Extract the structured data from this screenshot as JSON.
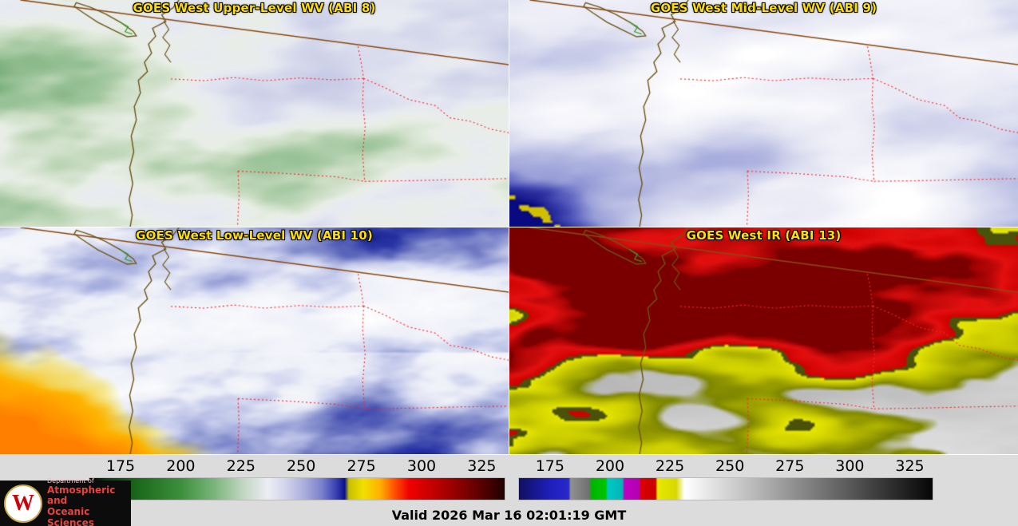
{
  "panels": [
    {
      "id": "upper_wv",
      "title": "GOES West Upper-Level WV (ABI 8)"
    },
    {
      "id": "mid_wv",
      "title": "GOES West Mid-Level WV (ABI 9)"
    },
    {
      "id": "low_wv",
      "title": "GOES West Low-Level WV (ABI 10)"
    },
    {
      "id": "ir",
      "title": "GOES West IR (ABI 13)"
    }
  ],
  "title_color": "#ffdf00",
  "colorbars": {
    "ticks": [
      "175",
      "200",
      "225",
      "250",
      "275",
      "300",
      "325"
    ],
    "wv": {
      "stops": [
        [
          0,
          "#000000"
        ],
        [
          0.04,
          "#0c3a0c"
        ],
        [
          0.12,
          "#1c6a1c"
        ],
        [
          0.22,
          "#3c8f3c"
        ],
        [
          0.3,
          "#7ab47a"
        ],
        [
          0.37,
          "#c2d6c2"
        ],
        [
          0.43,
          "#ecedf4"
        ],
        [
          0.47,
          "#d4d6ec"
        ],
        [
          0.52,
          "#a8acdc"
        ],
        [
          0.56,
          "#7a80cc"
        ],
        [
          0.595,
          "#3840b0"
        ],
        [
          0.615,
          "#0a1090"
        ],
        [
          0.625,
          "#c8c000"
        ],
        [
          0.66,
          "#f0e000"
        ],
        [
          0.7,
          "#ffb000"
        ],
        [
          0.735,
          "#ff5000"
        ],
        [
          0.77,
          "#f00000"
        ],
        [
          0.84,
          "#b80000"
        ],
        [
          0.92,
          "#700000"
        ],
        [
          1,
          "#200000"
        ]
      ]
    },
    "ir": {
      "stops": [
        [
          0,
          "#101060"
        ],
        [
          0.08,
          "#2020c0"
        ],
        [
          0.12,
          "#2828cc"
        ],
        [
          0.125,
          "#909090"
        ],
        [
          0.17,
          "#707070"
        ],
        [
          0.175,
          "#00b400"
        ],
        [
          0.21,
          "#00c400"
        ],
        [
          0.215,
          "#00c8c8"
        ],
        [
          0.25,
          "#00b4b4"
        ],
        [
          0.255,
          "#c000c0"
        ],
        [
          0.29,
          "#b400b4"
        ],
        [
          0.295,
          "#dc0000"
        ],
        [
          0.33,
          "#c80000"
        ],
        [
          0.335,
          "#e8e800"
        ],
        [
          0.38,
          "#d8d800"
        ],
        [
          0.4,
          "#ffffff"
        ],
        [
          1,
          "#050505"
        ]
      ]
    }
  },
  "map_colors": {
    "coast": "#6e5514",
    "canada_border": "#8a4a14",
    "state_border": "#ff2424",
    "accent_green": "#2e9e2e"
  },
  "logo": {
    "crest_letter": "W",
    "dept": "Department of",
    "line1": "Atmospheric and",
    "line2": "Oceanic Sciences"
  },
  "footer": {
    "valid_label": "Valid 2026 Mar 16 02:01:19 GMT"
  }
}
